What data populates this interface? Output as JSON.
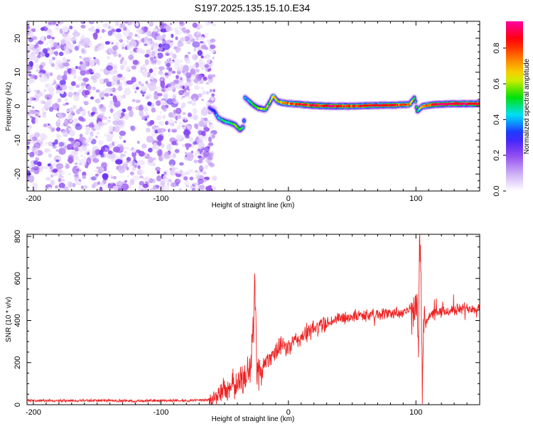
{
  "title": "S197.2025.135.15.10.E34",
  "chart_data": [
    {
      "type": "heatmap",
      "id": "spectrogram",
      "xlabel": "Height of straight line (km)",
      "ylabel": "Frequency (Hz)",
      "xlim": [
        -205,
        150
      ],
      "ylim": [
        -25,
        25
      ],
      "xticks": [
        -200,
        -100,
        0,
        100
      ],
      "yticks": [
        -20,
        -10,
        0,
        10,
        20
      ],
      "colorbar": {
        "label": "Normalized spectral amplitude",
        "range": [
          0,
          0.95
        ],
        "ticks": [
          0.0,
          0.2,
          0.4,
          0.6,
          0.8
        ],
        "tick_labels": [
          "0.0",
          "0.2",
          "0.4",
          "0.6",
          "0.8"
        ],
        "colors": [
          "#ffffff",
          "#c9a8f5",
          "#8a3ff0",
          "#2020ff",
          "#00e0ff",
          "#00e000",
          "#f0f000",
          "#ff8000",
          "#ff0000",
          "#ff00a0"
        ]
      },
      "noise_region": {
        "x_range": [
          -205,
          -62
        ],
        "typical_amplitude": 0.2,
        "peak_amplitude": 0.25
      },
      "signal_trace": [
        {
          "x": -62,
          "f": -0.5,
          "a": 0.3
        },
        {
          "x": -58,
          "f": -1.5,
          "a": 0.35
        },
        {
          "x": -55,
          "f": -3.5,
          "a": 0.4
        },
        {
          "x": -50,
          "f": -4.5,
          "a": 0.5
        },
        {
          "x": -45,
          "f": -5.0,
          "a": 0.5
        },
        {
          "x": -42,
          "f": -5.5,
          "a": 0.55
        },
        {
          "x": -38,
          "f": -7.0,
          "a": 0.5
        },
        {
          "x": -35,
          "f": -6.0,
          "a": 0.45
        },
        {
          "x": -34,
          "f": 2.5,
          "a": 0.4
        },
        {
          "x": -31,
          "f": 1.5,
          "a": 0.45
        },
        {
          "x": -28,
          "f": 0.5,
          "a": 0.5
        },
        {
          "x": -24,
          "f": -0.5,
          "a": 0.55
        },
        {
          "x": -18,
          "f": -1.0,
          "a": 0.55
        },
        {
          "x": -14,
          "f": 1.5,
          "a": 0.6
        },
        {
          "x": -12,
          "f": 3.0,
          "a": 0.6
        },
        {
          "x": -9,
          "f": 1.5,
          "a": 0.65
        },
        {
          "x": -5,
          "f": 1.0,
          "a": 0.7
        },
        {
          "x": 0,
          "f": 0.8,
          "a": 0.75
        },
        {
          "x": 10,
          "f": 0.5,
          "a": 0.8
        },
        {
          "x": 20,
          "f": 0.2,
          "a": 0.85
        },
        {
          "x": 35,
          "f": 0.0,
          "a": 0.85
        },
        {
          "x": 50,
          "f": 0.0,
          "a": 0.8
        },
        {
          "x": 65,
          "f": 0.2,
          "a": 0.8
        },
        {
          "x": 80,
          "f": 0.3,
          "a": 0.8
        },
        {
          "x": 95,
          "f": 0.5,
          "a": 0.75
        },
        {
          "x": 99,
          "f": 2.5,
          "a": 0.45
        },
        {
          "x": 101,
          "f": -1.5,
          "a": 0.45
        },
        {
          "x": 105,
          "f": 0.0,
          "a": 0.7
        },
        {
          "x": 115,
          "f": 0.5,
          "a": 0.85
        },
        {
          "x": 130,
          "f": 0.7,
          "a": 0.85
        },
        {
          "x": 150,
          "f": 0.7,
          "a": 0.85
        }
      ]
    },
    {
      "type": "line",
      "id": "snr",
      "xlabel": "Height of straight line (km)",
      "ylabel": "SNR (10 * v/v)",
      "xlim": [
        -205,
        150
      ],
      "ylim": [
        0,
        810
      ],
      "xticks": [
        -200,
        -100,
        0,
        100
      ],
      "yticks": [
        0,
        200,
        400,
        600,
        800
      ],
      "color": "#ee2222",
      "series": [
        {
          "name": "SNR",
          "x": [
            -205,
            -180,
            -150,
            -120,
            -90,
            -70,
            -60,
            -55,
            -50,
            -45,
            -40,
            -35,
            -30,
            -28,
            -26,
            -25,
            -24,
            -22,
            -20,
            -15,
            -10,
            -5,
            0,
            5,
            10,
            20,
            30,
            40,
            50,
            60,
            70,
            80,
            90,
            95,
            98,
            100,
            102,
            103,
            104,
            105,
            106,
            108,
            110,
            120,
            130,
            140,
            150
          ],
          "y": [
            20,
            18,
            20,
            18,
            20,
            20,
            25,
            50,
            70,
            90,
            100,
            120,
            180,
            300,
            565,
            200,
            150,
            170,
            180,
            230,
            250,
            280,
            270,
            300,
            320,
            360,
            390,
            410,
            420,
            425,
            430,
            435,
            440,
            450,
            420,
            480,
            330,
            810,
            600,
            70,
            380,
            400,
            420,
            440,
            450,
            460,
            460
          ]
        }
      ]
    }
  ]
}
